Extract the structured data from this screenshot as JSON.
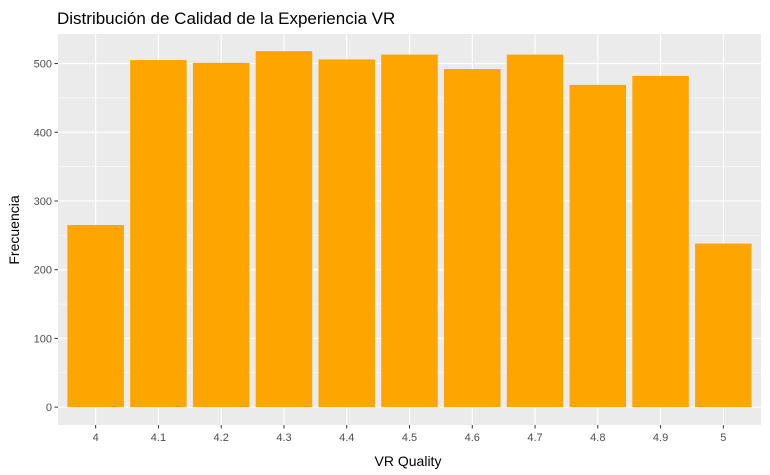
{
  "chart_data": {
    "type": "bar",
    "title": "Distribución de Calidad de la Experiencia VR",
    "xlabel": "VR Quality",
    "ylabel": "Frecuencia",
    "categories": [
      "4",
      "4.1",
      "4.2",
      "4.3",
      "4.4",
      "4.5",
      "4.6",
      "4.7",
      "4.8",
      "4.9",
      "5"
    ],
    "values": [
      265,
      505,
      501,
      518,
      506,
      513,
      492,
      513,
      469,
      482,
      238
    ],
    "ylim": [
      -26,
      543
    ],
    "yticks": [
      0,
      100,
      200,
      300,
      400,
      500
    ],
    "grid": true,
    "bar_color": "#FFA500",
    "panel_color": "#EBEBEB",
    "grid_color": "#FFFFFF"
  }
}
